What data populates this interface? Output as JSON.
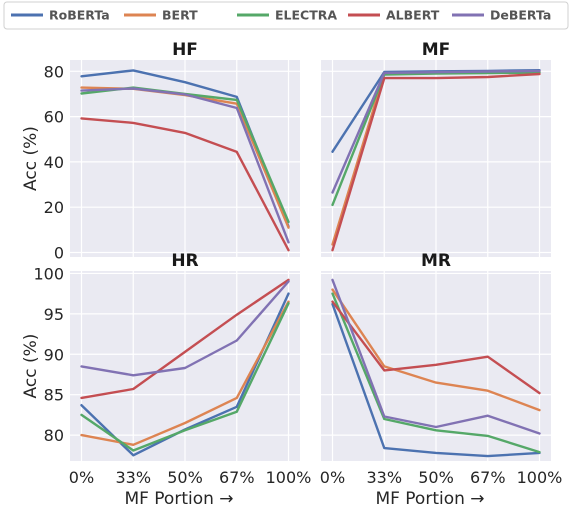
{
  "legend": {
    "placement": "top",
    "entries": [
      {
        "label": "RoBERTa",
        "color": "#4c72b0"
      },
      {
        "label": "BERT",
        "color": "#dd8452"
      },
      {
        "label": "ELECTRA",
        "color": "#55a868"
      },
      {
        "label": "ALBERT",
        "color": "#c44e52"
      },
      {
        "label": "DeBERTa",
        "color": "#8172b3"
      }
    ]
  },
  "chart_data": [
    {
      "type": "line",
      "title": "HF",
      "xlabel": "",
      "ylabel": "Acc (%)",
      "categories": [
        "0%",
        "33%",
        "50%",
        "67%",
        "100%"
      ],
      "ylim": [
        -2,
        85
      ],
      "yticks": [
        0,
        20,
        40,
        60,
        80
      ],
      "grid": true,
      "series": [
        {
          "name": "RoBERTa",
          "color": "#4c72b0",
          "values": [
            77.8,
            80.4,
            75.2,
            68.7,
            11.5
          ]
        },
        {
          "name": "BERT",
          "color": "#dd8452",
          "values": [
            72.8,
            72.3,
            69.5,
            65.7,
            11.0
          ]
        },
        {
          "name": "ELECTRA",
          "color": "#55a868",
          "values": [
            70.2,
            72.8,
            70.0,
            67.4,
            13.5
          ]
        },
        {
          "name": "ALBERT",
          "color": "#c44e52",
          "values": [
            59.2,
            57.2,
            52.8,
            44.4,
            1.0
          ]
        },
        {
          "name": "DeBERTa",
          "color": "#8172b3",
          "values": [
            71.5,
            72.4,
            69.8,
            63.8,
            4.5
          ]
        }
      ]
    },
    {
      "type": "line",
      "title": "MF",
      "xlabel": "",
      "ylabel": "",
      "categories": [
        "0%",
        "33%",
        "50%",
        "67%",
        "100%"
      ],
      "ylim": [
        -2,
        85
      ],
      "yticks": [
        0,
        20,
        40,
        60,
        80
      ],
      "grid": true,
      "series": [
        {
          "name": "RoBERTa",
          "color": "#4c72b0",
          "values": [
            44.5,
            79.7,
            80.0,
            80.2,
            80.5
          ]
        },
        {
          "name": "BERT",
          "color": "#dd8452",
          "values": [
            3.5,
            79.0,
            79.3,
            79.5,
            79.8
          ]
        },
        {
          "name": "ELECTRA",
          "color": "#55a868",
          "values": [
            21.0,
            78.6,
            79.0,
            79.2,
            79.5
          ]
        },
        {
          "name": "ALBERT",
          "color": "#c44e52",
          "values": [
            1.0,
            77.0,
            77.0,
            77.5,
            78.8
          ]
        },
        {
          "name": "DeBERTa",
          "color": "#8172b3",
          "values": [
            26.5,
            79.3,
            79.6,
            79.9,
            80.2
          ]
        }
      ]
    },
    {
      "type": "line",
      "title": "HR",
      "xlabel": "MF Portion →",
      "ylabel": "Acc (%)",
      "categories": [
        "0%",
        "33%",
        "50%",
        "67%",
        "100%"
      ],
      "ylim": [
        76.8,
        100.3
      ],
      "yticks": [
        80,
        85,
        90,
        95,
        100
      ],
      "grid": true,
      "series": [
        {
          "name": "RoBERTa",
          "color": "#4c72b0",
          "values": [
            83.7,
            77.5,
            80.7,
            83.5,
            97.5
          ]
        },
        {
          "name": "BERT",
          "color": "#dd8452",
          "values": [
            80.0,
            78.8,
            81.5,
            84.6,
            96.5
          ]
        },
        {
          "name": "ELECTRA",
          "color": "#55a868",
          "values": [
            82.5,
            78.1,
            80.6,
            82.9,
            96.3
          ]
        },
        {
          "name": "ALBERT",
          "color": "#c44e52",
          "values": [
            84.6,
            85.7,
            90.3,
            94.9,
            99.2
          ]
        },
        {
          "name": "DeBERTa",
          "color": "#8172b3",
          "values": [
            88.5,
            87.4,
            88.3,
            91.7,
            99.0
          ]
        }
      ]
    },
    {
      "type": "line",
      "title": "MR",
      "xlabel": "MF Portion →",
      "ylabel": "",
      "categories": [
        "0%",
        "33%",
        "50%",
        "67%",
        "100%"
      ],
      "ylim": [
        76.8,
        100.3
      ],
      "yticks": [
        80,
        85,
        90,
        95,
        100
      ],
      "grid": true,
      "series": [
        {
          "name": "RoBERTa",
          "color": "#4c72b0",
          "values": [
            96.2,
            78.4,
            77.8,
            77.4,
            77.8
          ]
        },
        {
          "name": "BERT",
          "color": "#dd8452",
          "values": [
            98.0,
            88.5,
            86.5,
            85.5,
            83.1
          ]
        },
        {
          "name": "ELECTRA",
          "color": "#55a868",
          "values": [
            97.5,
            82.0,
            80.6,
            79.9,
            77.9
          ]
        },
        {
          "name": "ALBERT",
          "color": "#c44e52",
          "values": [
            96.5,
            88.0,
            88.7,
            89.7,
            85.2
          ]
        },
        {
          "name": "DeBERTa",
          "color": "#8172b3",
          "values": [
            99.2,
            82.3,
            81.0,
            82.4,
            80.2
          ]
        }
      ]
    }
  ]
}
